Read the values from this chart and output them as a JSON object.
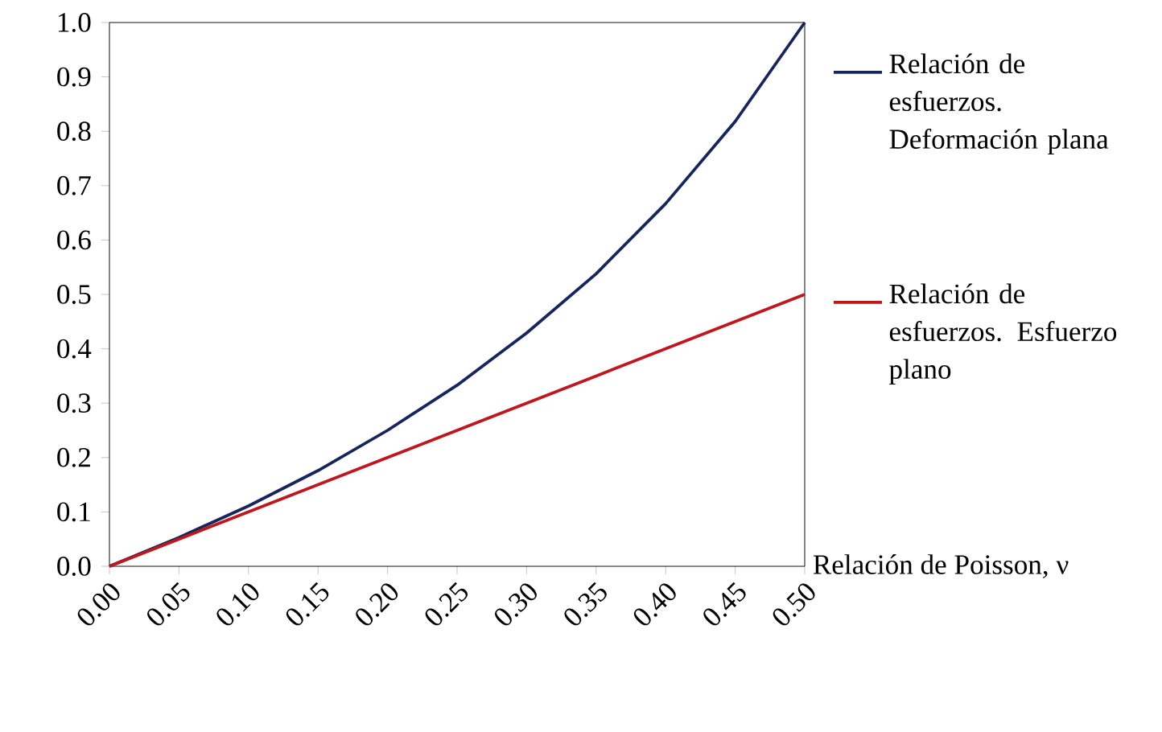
{
  "chart_data": {
    "type": "line",
    "xlabel": "Relación de Poisson, ν",
    "x": [
      0,
      0.05,
      0.1,
      0.15,
      0.2,
      0.25,
      0.3,
      0.35,
      0.4,
      0.45,
      0.5
    ],
    "series": [
      {
        "name": "Relación de esfuerzos. Deformación plana",
        "color": "#17255e",
        "values": [
          0,
          0.053,
          0.111,
          0.176,
          0.25,
          0.333,
          0.429,
          0.538,
          0.667,
          0.818,
          1.0
        ]
      },
      {
        "name": "Relación de esfuerzos. Esfuerzo plano",
        "color": "#c0161c",
        "values": [
          0,
          0.05,
          0.1,
          0.15,
          0.2,
          0.25,
          0.3,
          0.35,
          0.4,
          0.45,
          0.5
        ]
      }
    ],
    "xlim": [
      0,
      0.5
    ],
    "ylim": [
      0,
      1
    ],
    "xticks": [
      {
        "value": 0,
        "label": "0.00"
      },
      {
        "value": 0.05,
        "label": "0.05"
      },
      {
        "value": 0.1,
        "label": "0.10"
      },
      {
        "value": 0.15,
        "label": "0.15"
      },
      {
        "value": 0.2,
        "label": "0.20"
      },
      {
        "value": 0.25,
        "label": "0.25"
      },
      {
        "value": 0.3,
        "label": "0.30"
      },
      {
        "value": 0.35,
        "label": "0.35"
      },
      {
        "value": 0.4,
        "label": "0.40"
      },
      {
        "value": 0.45,
        "label": "0.45"
      },
      {
        "value": 0.5,
        "label": "0.50"
      }
    ],
    "yticks": [
      {
        "value": 0,
        "label": "0.0"
      },
      {
        "value": 0.1,
        "label": "0.1"
      },
      {
        "value": 0.2,
        "label": "0.2"
      },
      {
        "value": 0.3,
        "label": "0.3"
      },
      {
        "value": 0.4,
        "label": "0.4"
      },
      {
        "value": 0.5,
        "label": "0.5"
      },
      {
        "value": 0.6,
        "label": "0.6"
      },
      {
        "value": 0.7,
        "label": "0.7"
      },
      {
        "value": 0.8,
        "label": "0.8"
      },
      {
        "value": 0.9,
        "label": "0.9"
      },
      {
        "value": 1.0,
        "label": "1.0"
      }
    ],
    "legend": "right",
    "grid": false,
    "marker": "none",
    "line_style": "solid"
  }
}
